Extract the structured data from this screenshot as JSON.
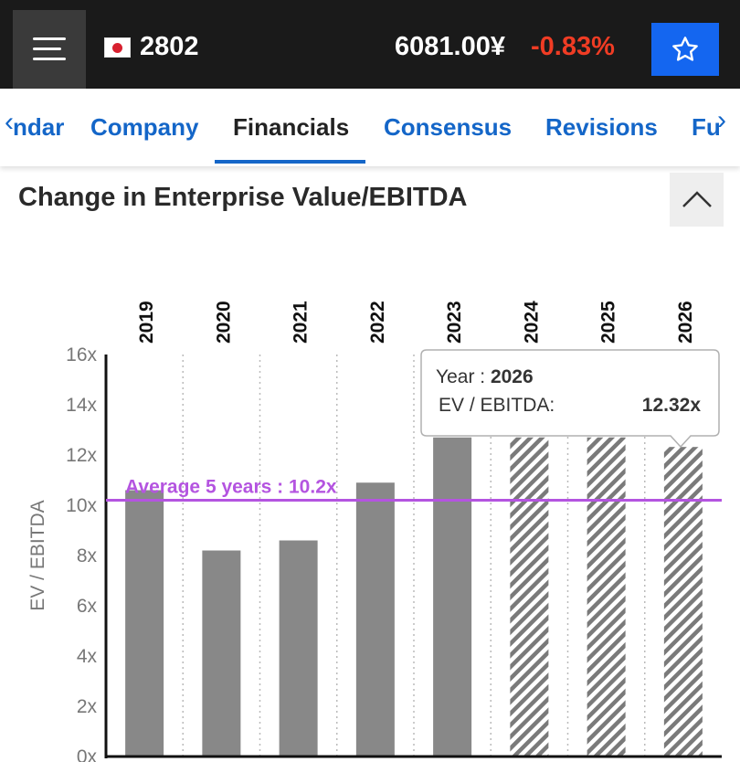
{
  "header": {
    "menu_icon": "hamburger-menu-icon",
    "flag_icon": "japan-flag-icon",
    "ticker": "2802",
    "price": "6081.00¥",
    "change": "-0.83%",
    "favorite_icon": "star-outline-icon",
    "colors": {
      "bar": "#1a1a1a",
      "change_negative": "#f03c24",
      "favorite_bg": "#1466f0"
    }
  },
  "tabs": {
    "prev_icon": "chevron-left-icon",
    "next_icon": "chevron-right-icon",
    "items": [
      {
        "label": "ndar",
        "active": false
      },
      {
        "label": "Company",
        "active": false
      },
      {
        "label": "Financials",
        "active": true
      },
      {
        "label": "Consensus",
        "active": false
      },
      {
        "label": "Revisions",
        "active": false
      },
      {
        "label": "Fu",
        "active": false
      }
    ]
  },
  "section": {
    "title": "Change in Enterprise Value/EBITDA",
    "collapse_icon": "chevron-up-icon"
  },
  "chart_data": {
    "type": "bar",
    "title": "Change in Enterprise Value/EBITDA",
    "categories": [
      "2019",
      "2020",
      "2021",
      "2022",
      "2023",
      "2024",
      "2025",
      "2026"
    ],
    "values": [
      10.6,
      8.2,
      8.6,
      10.9,
      12.7,
      12.7,
      12.7,
      12.32
    ],
    "estimate_from_index": 5,
    "ylabel": "EV / EBITDA",
    "xlabel": "",
    "ylim": [
      0,
      16
    ],
    "yticks": [
      "0x",
      "2x",
      "4x",
      "6x",
      "8x",
      "10x",
      "12x",
      "14x",
      "16x"
    ],
    "average": {
      "label": "Average 5 years : 10.2x",
      "value": 10.2,
      "color": "#b454e0"
    },
    "tooltip": {
      "year_label": "Year : ",
      "year": "2026",
      "metric_label": "EV / EBITDA:",
      "metric_value": "12.32x"
    },
    "colors": {
      "bar": "#888888",
      "hatch": "#7a7a7a",
      "axis": "#111111",
      "grid": "#bbbbbb"
    }
  }
}
